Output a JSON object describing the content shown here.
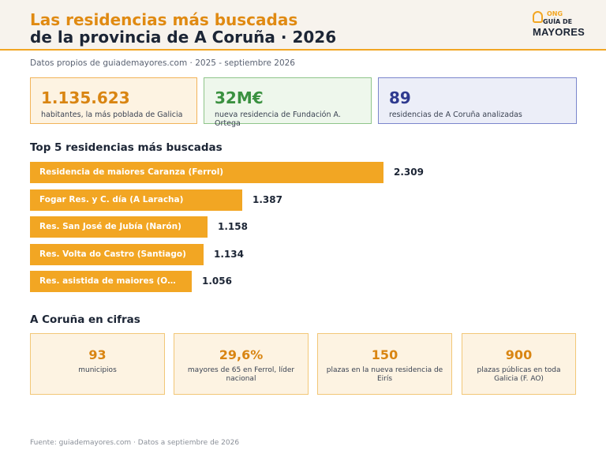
{
  "header": {
    "title_line1": "Las residencias más buscadas",
    "title_line2": "de la provincia de A Coruña · 2026"
  },
  "logo": {
    "ong": "ONG",
    "guia": "GUÍA DE",
    "mayores": "MAYORES"
  },
  "subtitle": "Datos propios de guiademayores.com · 2025 - septiembre 2026",
  "kpis": [
    {
      "value": "1.135.623",
      "label": "habitantes, la más poblada de Galicia",
      "color": "#d98512"
    },
    {
      "value": "32M€",
      "label": "nueva residencia de Fundación A. Ortega",
      "color": "#3a9140"
    },
    {
      "value": "89",
      "label": "residencias de A Coruña analizadas",
      "color": "#2f3a8f"
    }
  ],
  "chart_data": {
    "type": "bar",
    "orientation": "horizontal",
    "title": "Top 5 residencias más buscadas",
    "categories": [
      "Residencia de maiores Caranza (Ferrol)",
      "Fogar Res. y C. día (A Laracha)",
      "Res. San José de Jubía (Narón)",
      "Res. Volta do Castro (Santiago)",
      "Res. asistida de maiores (O…"
    ],
    "values": [
      2309,
      1387,
      1158,
      1134,
      1056
    ],
    "value_labels": [
      "2.309",
      "1.387",
      "1.158",
      "1.134",
      "1.056"
    ],
    "bar_color": "#f2a623",
    "grid": false
  },
  "facts": {
    "title": "A Coruña en cifras",
    "items": [
      {
        "value": "93",
        "label": "municipios"
      },
      {
        "value": "29,6%",
        "label": "mayores de 65 en Ferrol, líder nacional"
      },
      {
        "value": "150",
        "label": "plazas en la nueva residencia de Eirís"
      },
      {
        "value": "900",
        "label": "plazas públicas en toda Galicia (F. AO)"
      }
    ]
  },
  "footer": "Fuente: guiademayores.com · Datos a septiembre de 2026"
}
